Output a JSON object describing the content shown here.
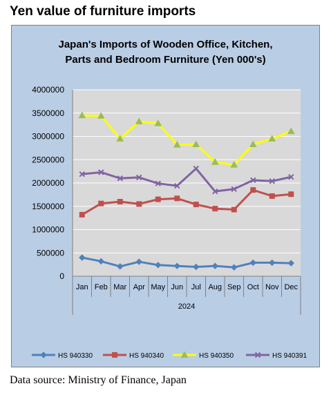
{
  "page_heading": "Yen value of furniture imports",
  "source_note": "Data source: Ministry of Finance, Japan",
  "chart_data": {
    "type": "line",
    "title_line1": "Japan's Imports of  Wooden  Office, Kitchen,",
    "title_line2": "Parts and Bedroom Furniture (Yen 000's)",
    "categories": [
      "Jan",
      "Feb",
      "Mar",
      "Apr",
      "May",
      "Jun",
      "Jul",
      "Aug",
      "Sep",
      "Oct",
      "Nov",
      "Dec"
    ],
    "year_label": "2024",
    "ylim": [
      0,
      4000000
    ],
    "yticks": [
      "0",
      "500000",
      "1000000",
      "1500000",
      "2000000",
      "2500000",
      "3000000",
      "3500000",
      "4000000"
    ],
    "grid": true,
    "legend_position": "bottom",
    "plot_background": "#d9d9d9",
    "series": [
      {
        "name": "HS 940330",
        "color": "#4f81bd",
        "marker": "diamond",
        "values": [
          400000,
          320000,
          210000,
          310000,
          240000,
          220000,
          200000,
          220000,
          190000,
          290000,
          290000,
          280000
        ]
      },
      {
        "name": "HS 940340",
        "color": "#c0504d",
        "marker": "square",
        "values": [
          1320000,
          1560000,
          1600000,
          1550000,
          1650000,
          1670000,
          1540000,
          1450000,
          1430000,
          1850000,
          1720000,
          1760000
        ]
      },
      {
        "name": "HS 940350",
        "color": "#ffff00",
        "marker": "triangle",
        "values": [
          3450000,
          3440000,
          2950000,
          3320000,
          3280000,
          2820000,
          2830000,
          2450000,
          2390000,
          2830000,
          2950000,
          3110000
        ]
      },
      {
        "name": "HS 940391",
        "color": "#8064a2",
        "marker": "x",
        "values": [
          2190000,
          2230000,
          2100000,
          2120000,
          1990000,
          1940000,
          2310000,
          1820000,
          1870000,
          2060000,
          2040000,
          2130000
        ]
      }
    ]
  }
}
